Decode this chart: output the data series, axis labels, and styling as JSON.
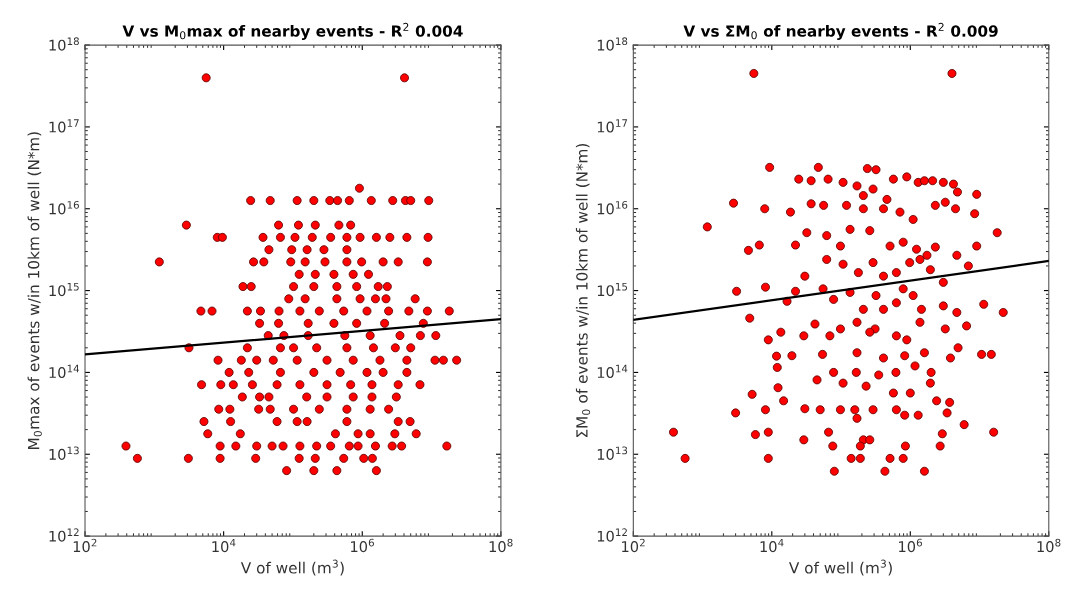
{
  "chart_data": [
    {
      "type": "scatter",
      "title": "V vs M$_{0}$max of nearby events - R$^{2}$ 0.004",
      "xlabel": "V of well (m$^{3}$)",
      "ylabel": "M$_{0}$max of events w/in 10km of well (N*m)",
      "log": "xy",
      "grid": false,
      "xlim": [
        100,
        100000000
      ],
      "ylim": [
        1000000000000,
        1000000000000000000
      ],
      "xticks": [
        {
          "value": 100,
          "label": "10$^{2}$"
        },
        {
          "value": 10000,
          "label": "10$^{4}$"
        },
        {
          "value": 1000000,
          "label": "10$^{6}$"
        },
        {
          "value": 100000000,
          "label": "10$^{8}$"
        }
      ],
      "yticks": [
        {
          "value": 1000000000000.0,
          "label": "10$^{12}$"
        },
        {
          "value": 10000000000000.0,
          "label": "10$^{13}$"
        },
        {
          "value": 100000000000000.0,
          "label": "10$^{14}$"
        },
        {
          "value": 1000000000000000.0,
          "label": "10$^{15}$"
        },
        {
          "value": 1e+16,
          "label": "10$^{16}$"
        },
        {
          "value": 1e+17,
          "label": "10$^{17}$"
        },
        {
          "value": 1e+18,
          "label": "10$^{18}$"
        }
      ],
      "series": [
        {
          "marker": "circle",
          "color": "#ff0000",
          "x": [
            5600,
            4070000,
            910000,
            24500,
            47000,
            115000,
            200000,
            340000,
            440000,
            650000,
            1350000,
            2750000,
            4200000,
            5000000,
            9100000,
            2900,
            62000,
            120000,
            210000,
            460000,
            680000,
            8100,
            9600,
            37000,
            66000,
            107000,
            190000,
            350000,
            600000,
            930000,
            1600000,
            2500000,
            4400000,
            8900000,
            45000,
            96000,
            160000,
            280000,
            600000,
            1180,
            27000,
            38000,
            93000,
            150000,
            290000,
            600000,
            980000,
            2000000,
            3300000,
            8700000,
            123000,
            210000,
            390000,
            740000,
            1230000,
            19000,
            25000,
            102000,
            200000,
            430000,
            830000,
            1700000,
            2300000,
            87000,
            150000,
            430000,
            930000,
            1550000,
            2200000,
            5800000,
            4700,
            6800,
            22000,
            34000,
            63000,
            126000,
            240000,
            540000,
            1170000,
            2400000,
            4700000,
            8700000,
            18000000,
            33000,
            62000,
            166000,
            390000,
            830000,
            2100000,
            7600000,
            44000,
            74000,
            166000,
            560000,
            1300000,
            3500000,
            6900000,
            11500000,
            3160,
            22000,
            66000,
            102000,
            220000,
            600000,
            1450000,
            3000000,
            5000000,
            8300,
            18000,
            30000,
            52000,
            115000,
            310000,
            740000,
            1800000,
            4400000,
            11200000,
            14800000,
            23000000,
            12000,
            23000,
            66000,
            200000,
            480000,
            1170000,
            2000000,
            4400000,
            4800,
            9100,
            13800,
            26000,
            59000,
            126000,
            310000,
            680000,
            1380000,
            3300000,
            6800000,
            18600,
            33000,
            45000,
            158000,
            310000,
            740000,
            1380000,
            3100000,
            8500,
            12300,
            32000,
            47000,
            102000,
            240000,
            600000,
            1300000,
            2400000,
            5200,
            12600,
            59000,
            115000,
            160000,
            600000,
            3300000,
            4900000,
            5900,
            17400,
            410000,
            870000,
            1300000,
            2950000,
            6000000,
            390,
            8900,
            15000,
            30000,
            50000,
            72000,
            126000,
            220000,
            350000,
            650000,
            870000,
            1550000,
            2700000,
            3700000,
            16600000,
            570,
            3100,
            8900,
            29000,
            123000,
            210000,
            540000,
            1050000,
            1400000,
            81000,
            200000,
            430000,
            1600000
          ],
          "values": [
            3.98e+17,
            3.98e+17,
            1.78e+16,
            1.26e+16,
            1.26e+16,
            1.26e+16,
            1.26e+16,
            1.26e+16,
            1.26e+16,
            1.26e+16,
            1.26e+16,
            1.26e+16,
            1.26e+16,
            1.26e+16,
            1.26e+16,
            6310000000000000.0,
            6310000000000000.0,
            6310000000000000.0,
            6310000000000000.0,
            6310000000000000.0,
            6310000000000000.0,
            4470000000000000.0,
            4470000000000000.0,
            4470000000000000.0,
            4470000000000000.0,
            4470000000000000.0,
            4470000000000000.0,
            4470000000000000.0,
            4470000000000000.0,
            4470000000000000.0,
            4470000000000000.0,
            4470000000000000.0,
            4470000000000000.0,
            4470000000000000.0,
            3160000000000000.0,
            3160000000000000.0,
            3160000000000000.0,
            3160000000000000.0,
            3160000000000000.0,
            2240000000000000.0,
            2240000000000000.0,
            2240000000000000.0,
            2240000000000000.0,
            2240000000000000.0,
            2240000000000000.0,
            2240000000000000.0,
            2240000000000000.0,
            2240000000000000.0,
            2240000000000000.0,
            2240000000000000.0,
            1580000000000000.0,
            1580000000000000.0,
            1580000000000000.0,
            1580000000000000.0,
            1580000000000000.0,
            1120000000000000.0,
            1120000000000000.0,
            1120000000000000.0,
            1120000000000000.0,
            1120000000000000.0,
            1120000000000000.0,
            1120000000000000.0,
            1120000000000000.0,
            794000000000000.0,
            794000000000000.0,
            794000000000000.0,
            794000000000000.0,
            794000000000000.0,
            794000000000000.0,
            794000000000000.0,
            562000000000000.0,
            562000000000000.0,
            562000000000000.0,
            562000000000000.0,
            562000000000000.0,
            562000000000000.0,
            562000000000000.0,
            562000000000000.0,
            562000000000000.0,
            562000000000000.0,
            562000000000000.0,
            562000000000000.0,
            562000000000000.0,
            398000000000000.0,
            398000000000000.0,
            398000000000000.0,
            398000000000000.0,
            398000000000000.0,
            398000000000000.0,
            398000000000000.0,
            282000000000000.0,
            282000000000000.0,
            282000000000000.0,
            282000000000000.0,
            282000000000000.0,
            282000000000000.0,
            282000000000000.0,
            282000000000000.0,
            200000000000000.0,
            200000000000000.0,
            200000000000000.0,
            200000000000000.0,
            200000000000000.0,
            200000000000000.0,
            200000000000000.0,
            200000000000000.0,
            200000000000000.0,
            141000000000000.0,
            141000000000000.0,
            141000000000000.0,
            141000000000000.0,
            141000000000000.0,
            141000000000000.0,
            141000000000000.0,
            141000000000000.0,
            141000000000000.0,
            141000000000000.0,
            141000000000000.0,
            141000000000000.0,
            100000000000000.0,
            100000000000000.0,
            100000000000000.0,
            100000000000000.0,
            100000000000000.0,
            100000000000000.0,
            100000000000000.0,
            100000000000000.0,
            70800000000000.0,
            70800000000000.0,
            70800000000000.0,
            70800000000000.0,
            70800000000000.0,
            70800000000000.0,
            70800000000000.0,
            70800000000000.0,
            70800000000000.0,
            70800000000000.0,
            70800000000000.0,
            50100000000000.0,
            50100000000000.0,
            50100000000000.0,
            50100000000000.0,
            50100000000000.0,
            50100000000000.0,
            50100000000000.0,
            50100000000000.0,
            35500000000000.0,
            35500000000000.0,
            35500000000000.0,
            35500000000000.0,
            35500000000000.0,
            35500000000000.0,
            35500000000000.0,
            35500000000000.0,
            35500000000000.0,
            25100000000000.0,
            25100000000000.0,
            25100000000000.0,
            25100000000000.0,
            25100000000000.0,
            25100000000000.0,
            25100000000000.0,
            25100000000000.0,
            17800000000000.0,
            17800000000000.0,
            17800000000000.0,
            17800000000000.0,
            17800000000000.0,
            17800000000000.0,
            17800000000000.0,
            12600000000000.0,
            12600000000000.0,
            12600000000000.0,
            12600000000000.0,
            12600000000000.0,
            12600000000000.0,
            12600000000000.0,
            12600000000000.0,
            12600000000000.0,
            12600000000000.0,
            12600000000000.0,
            12600000000000.0,
            12600000000000.0,
            12600000000000.0,
            12600000000000.0,
            8910000000000.0,
            8910000000000.0,
            8910000000000.0,
            8910000000000.0,
            8910000000000.0,
            8910000000000.0,
            8910000000000.0,
            8910000000000.0,
            8910000000000.0,
            6310000000000.0,
            6310000000000.0,
            6310000000000.0,
            6310000000000.0
          ]
        },
        {
          "type": "line",
          "marker": "none",
          "color": "#000000",
          "x": [
            100,
            100000000
          ],
          "values": [
            166000000000000.0,
            447000000000000.0
          ]
        }
      ]
    },
    {
      "type": "scatter",
      "title": "V vs ΣM$_{0}$ of nearby events - R$^{2}$ 0.009",
      "xlabel": "V of well (m$^{3}$)",
      "ylabel": "ΣM$_{0}$ of events w/in 10km of well (N*m)",
      "log": "xy",
      "grid": false,
      "xlim": [
        100,
        100000000
      ],
      "ylim": [
        1000000000000,
        1000000000000000000
      ],
      "xticks": [
        {
          "value": 100,
          "label": "10$^{2}$"
        },
        {
          "value": 10000,
          "label": "10$^{4}$"
        },
        {
          "value": 1000000,
          "label": "10$^{6}$"
        },
        {
          "value": 100000000,
          "label": "10$^{8}$"
        }
      ],
      "yticks": [
        {
          "value": 1000000000000.0,
          "label": "10$^{12}$"
        },
        {
          "value": 10000000000000.0,
          "label": "10$^{13}$"
        },
        {
          "value": 100000000000000.0,
          "label": "10$^{14}$"
        },
        {
          "value": 1000000000000000.0,
          "label": "10$^{15}$"
        },
        {
          "value": 1e+16,
          "label": "10$^{16}$"
        },
        {
          "value": 1e+17,
          "label": "10$^{17}$"
        },
        {
          "value": 1e+18,
          "label": "10$^{18}$"
        }
      ],
      "series": [
        {
          "marker": "circle",
          "color": "#ff0000",
          "x": [
            5500,
            4000000,
            9300,
            47000,
            240000,
            320000,
            2800,
            1170,
            7900,
            18600,
            24500,
            37000,
            65000,
            107000,
            170000,
            210000,
            290000,
            460000,
            570000,
            890000,
            1300000,
            1600000,
            2100000,
            3000000,
            4200000,
            4800000,
            9100000,
            8500000,
            37000,
            56000,
            120000,
            210000,
            410000,
            710000,
            1100000,
            2300000,
            3200000,
            4500000,
            18000000,
            4600,
            6600,
            22000,
            32000,
            62000,
            98000,
            135000,
            260000,
            510000,
            790000,
            1230000,
            1740000,
            2300000,
            4700000,
            9100000,
            30000,
            62000,
            107000,
            178000,
            290000,
            410000,
            630000,
            980000,
            1380000,
            1950000,
            3000000,
            6900000,
            3100,
            8100,
            22000,
            16600,
            55000,
            78000,
            135000,
            210000,
            320000,
            410000,
            630000,
            790000,
            1100000,
            1450000,
            3000000,
            4700000,
            11500000,
            22000000,
            4800,
            42000,
            98000,
            170000,
            310000,
            630000,
            890000,
            1380000,
            3200000,
            6500000,
            8900,
            13500,
            29000,
            69000,
            260000,
            4900000,
            11700,
            19500,
            54000,
            170000,
            410000,
            830000,
            1600000,
            3800000,
            10700000,
            14800000,
            12000,
            78000,
            166000,
            350000,
            620000,
            1170000,
            2000000,
            12300,
            45000,
            107000,
            230000,
            570000,
            1000000,
            1950000,
            5200,
            14800,
            3000,
            8100,
            30000,
            50000,
            98000,
            158000,
            290000,
            630000,
            830000,
            1300000,
            2400000,
            3400000,
            3700000,
            6000000,
            380,
            5800,
            8900,
            29000,
            66000,
            170000,
            210000,
            260000,
            2900000,
            16000000,
            2700000,
            76000,
            850000,
            190000,
            560,
            8900,
            140000,
            190000,
            510000,
            790000,
            80000,
            430000,
            1600000
          ],
          "values": [
            4.5e+17,
            4.5e+17,
            3.2e+16,
            3.2e+16,
            3.1e+16,
            3e+16,
            1.17e+16,
            6000000000000000.0,
            1e+16,
            9100000000000000.0,
            2.3e+16,
            2.2e+16,
            2.3e+16,
            2.1e+16,
            1.9e+16,
            1.45e+16,
            1.74e+16,
            1.3e+16,
            2.3e+16,
            2.45e+16,
            2.1e+16,
            2.2e+16,
            2.2e+16,
            2.1e+16,
            2e+16,
            1.6e+16,
            1.5e+16,
            8700000000000000.0,
            1.15e+16,
            1.1e+16,
            1.1e+16,
            1e+16,
            1e+16,
            9100000000000000.0,
            7400000000000000.0,
            1.1e+16,
            1.2e+16,
            1e+16,
            5100000000000000.0,
            3100000000000000.0,
            3600000000000000.0,
            3600000000000000.0,
            5100000000000000.0,
            4700000000000000.0,
            3500000000000000.0,
            5600000000000000.0,
            5400000000000000.0,
            3500000000000000.0,
            3900000000000000.0,
            3200000000000000.0,
            2700000000000000.0,
            3400000000000000.0,
            2700000000000000.0,
            3500000000000000.0,
            1500000000000000.0,
            2400000000000000.0,
            2100000000000000.0,
            1660000000000000.0,
            2200000000000000.0,
            1500000000000000.0,
            1660000000000000.0,
            2200000000000000.0,
            2400000000000000.0,
            1800000000000000.0,
            1260000000000000.0,
            2000000000000000.0,
            980000000000000.0,
            1100000000000000.0,
            980000000000000.0,
            740000000000000.0,
            1050000000000000.0,
            780000000000000.0,
            950000000000000.0,
            590000000000000.0,
            870000000000000.0,
            590000000000000.0,
            710000000000000.0,
            1050000000000000.0,
            870000000000000.0,
            590000000000000.0,
            650000000000000.0,
            540000000000000.0,
            680000000000000.0,
            540000000000000.0,
            460000000000000.0,
            390000000000000.0,
            340000000000000.0,
            410000000000000.0,
            340000000000000.0,
            280000000000000.0,
            250000000000000.0,
            410000000000000.0,
            340000000000000.0,
            370000000000000.0,
            250000000000000.0,
            310000000000000.0,
            280000000000000.0,
            280000000000000.0,
            310000000000000.0,
            200000000000000.0,
            158000000000000.0,
            160000000000000.0,
            166000000000000.0,
            174000000000000.0,
            150000000000000.0,
            160000000000000.0,
            174000000000000.0,
            150000000000000.0,
            166000000000000.0,
            166000000000000.0,
            115000000000000.0,
            100000000000000.0,
            100000000000000.0,
            93000000000000.0,
            100000000000000.0,
            120000000000000.0,
            100000000000000.0,
            65000000000000.0,
            81000000000000.0,
            74000000000000.0,
            68000000000000.0,
            56000000000000.0,
            56000000000000.0,
            74000000000000.0,
            54000000000000.0,
            45000000000000.0,
            32000000000000.0,
            35000000000000.0,
            36000000000000.0,
            35000000000000.0,
            35000000000000.0,
            35000000000000.0,
            35000000000000.0,
            35000000000000.0,
            30000000000000.0,
            30000000000000.0,
            45000000000000.0,
            32000000000000.0,
            43000000000000.0,
            23000000000000.0,
            18600000000000.0,
            17400000000000.0,
            18600000000000.0,
            15000000000000.0,
            18600000000000.0,
            27500000000000.0,
            15000000000000.0,
            15000000000000.0,
            17800000000000.0,
            18600000000000.0,
            12600000000000.0,
            12600000000000.0,
            12600000000000.0,
            12600000000000.0,
            8900000000000.0,
            8900000000000.0,
            8900000000000.0,
            8900000000000.0,
            8900000000000.0,
            8900000000000.0,
            6200000000000.0,
            6200000000000.0,
            6200000000000.0
          ]
        },
        {
          "type": "line",
          "marker": "none",
          "color": "#000000",
          "x": [
            100,
            100000000
          ],
          "values": [
            440000000000000.0,
            2300000000000000.0
          ]
        }
      ]
    }
  ]
}
